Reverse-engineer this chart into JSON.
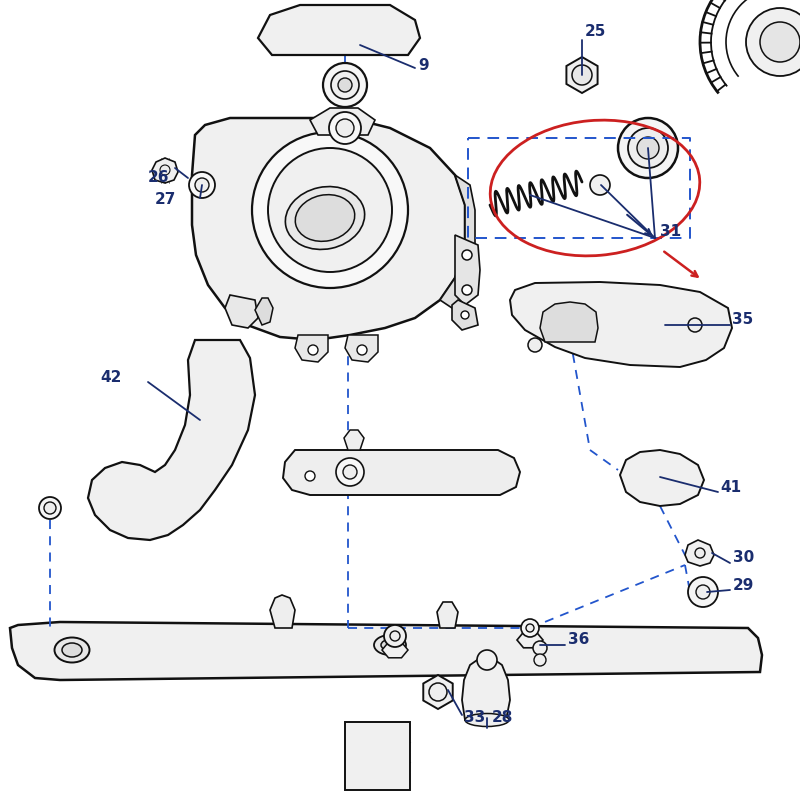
{
  "bg": "#ffffff",
  "lc": "#111111",
  "bc": "#1a2d6e",
  "rc": "#cc2020",
  "bdc": "#2255cc",
  "lw": 1.6
}
